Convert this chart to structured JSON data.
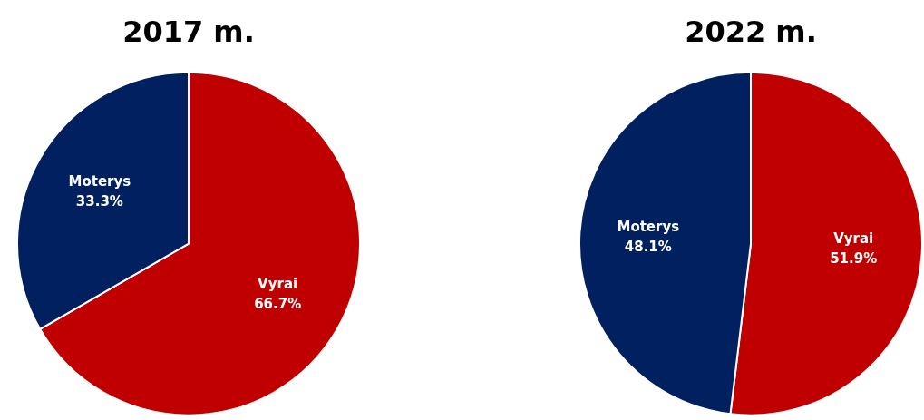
{
  "chart_data": [
    {
      "type": "pie",
      "title": "2017 m.",
      "categories": [
        "Vyrai",
        "Moterys"
      ],
      "values": [
        66.7,
        33.3
      ],
      "value_labels": [
        "66.7%",
        "33.3%"
      ],
      "colors": [
        "#c00000",
        "#002060"
      ],
      "legend": false
    },
    {
      "type": "pie",
      "title": "2022 m.",
      "categories": [
        "Vyrai",
        "Moterys"
      ],
      "values": [
        51.9,
        48.1
      ],
      "value_labels": [
        "51.9%",
        "48.1%"
      ],
      "colors": [
        "#c00000",
        "#002060"
      ],
      "legend": false
    }
  ]
}
